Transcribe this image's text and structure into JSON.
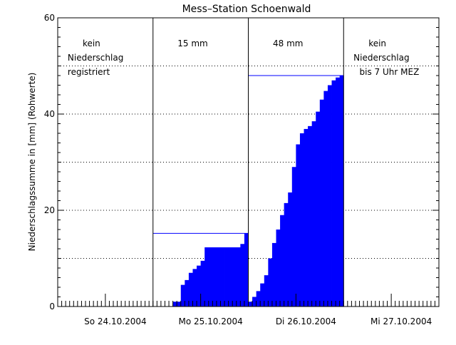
{
  "chart_data": {
    "type": "area",
    "title": "Mess–Station Schoenwald",
    "ylabel": "Niederschlagssumme in [mm] (Rohwerte)",
    "xlabel": "",
    "ylim": [
      0,
      60
    ],
    "yticks": [
      "0",
      "20",
      "40",
      "60"
    ],
    "ytick_values": [
      0,
      20,
      40,
      60
    ],
    "y_dotted_grid": [
      10,
      30,
      50
    ],
    "xlim_hours": [
      0,
      96
    ],
    "day_labels": [
      "So 24.10.2004",
      "Mo 25.10.2004",
      "Di 26.10.2004",
      "Mi 27.10.2004"
    ],
    "day_dividers_hours": [
      24,
      48,
      72
    ],
    "fill_color": "#0000ff",
    "line_color": "#000000",
    "days": [
      {
        "label": "So 24.10.2004",
        "annotation": [
          "kein",
          "Niederschlag",
          "registriert"
        ],
        "total_mm": null,
        "values": []
      },
      {
        "label": "Mo 25.10.2004",
        "annotation": [
          "15 mm"
        ],
        "total_mm": 15.2,
        "values": [
          0,
          0,
          0,
          0,
          0,
          1.0,
          1.0,
          4.5,
          5.5,
          7.0,
          7.8,
          8.5,
          9.5,
          12.3,
          12.3,
          12.3,
          12.3,
          12.3,
          12.3,
          12.3,
          12.3,
          12.3,
          13.0,
          15.2
        ]
      },
      {
        "label": "Di 26.10.2004",
        "annotation": [
          "48 mm"
        ],
        "total_mm": 48.0,
        "values": [
          1.0,
          2.0,
          3.2,
          4.8,
          6.5,
          10.0,
          13.2,
          16.0,
          19.0,
          21.5,
          23.7,
          29.0,
          33.7,
          36.0,
          36.9,
          37.5,
          38.5,
          40.5,
          43.0,
          44.8,
          46.0,
          47.0,
          47.6,
          48.0
        ]
      },
      {
        "label": "Mi 27.10.2004",
        "annotation": [
          "kein",
          "Niederschlag",
          "bis 7 Uhr MEZ"
        ],
        "total_mm": null,
        "values": []
      }
    ]
  }
}
